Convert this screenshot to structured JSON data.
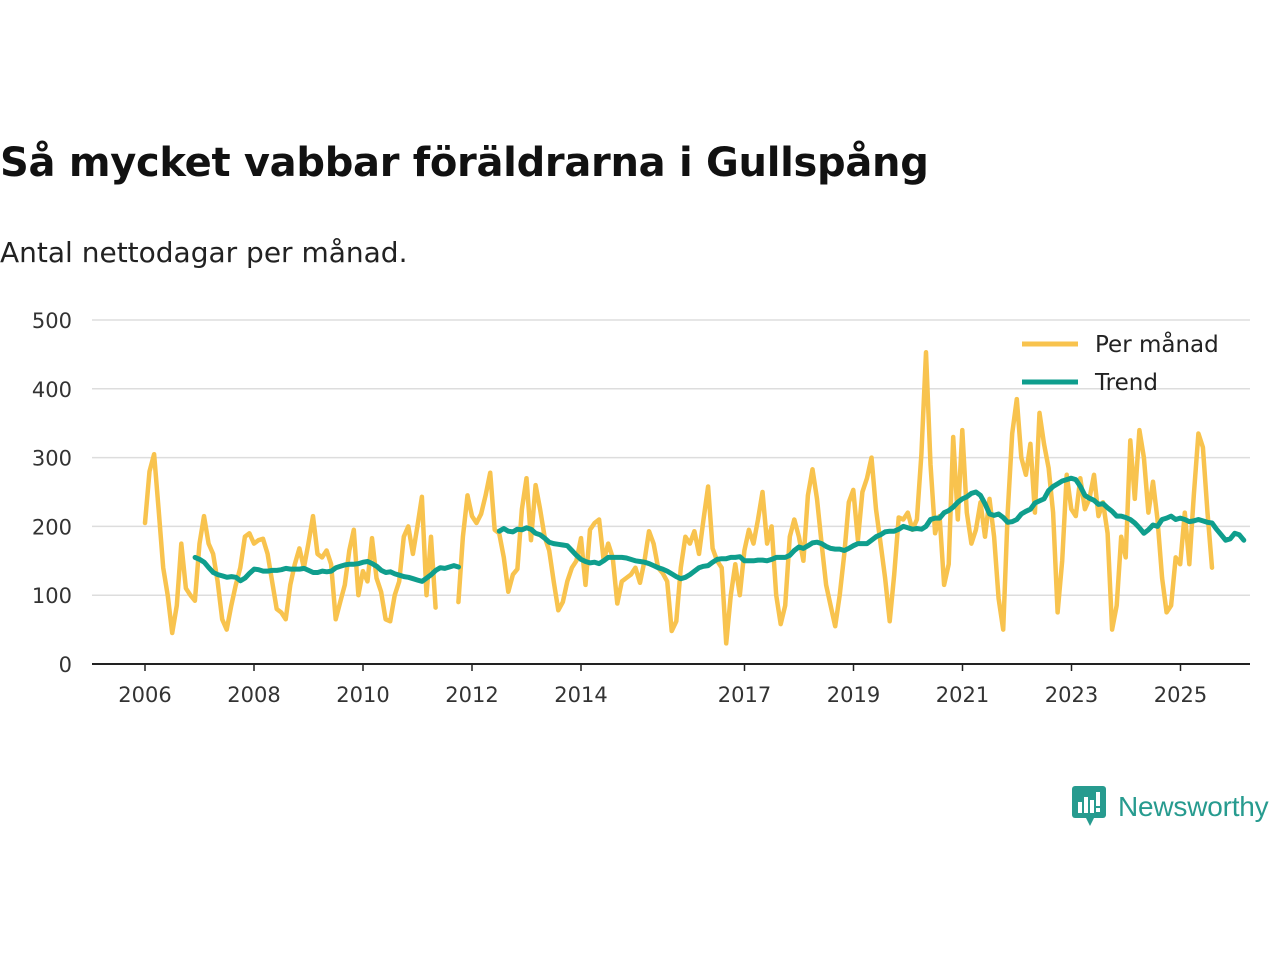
{
  "title": "Så mycket vabbar föräldrarna i Gullspång",
  "subtitle": "Antal nettodagar per månad.",
  "brand": {
    "name": "Newsworthy",
    "icon": "newsworthy-logo-icon",
    "color": "#279b8f"
  },
  "colors": {
    "monthly": "#f8c34e",
    "trend": "#0f9e8d",
    "grid": "#dddddd",
    "axis": "#222222"
  },
  "chart_data": {
    "type": "line",
    "title": "Så mycket vabbar föräldrarna i Gullspång",
    "subtitle": "Antal nettodagar per månad.",
    "xlabel": "",
    "ylabel": "",
    "ylim": [
      0,
      500
    ],
    "xlim": [
      2005.1,
      2025.8
    ],
    "yticks": [
      0,
      100,
      200,
      300,
      400,
      500
    ],
    "xticks": [
      2006,
      2008,
      2010,
      2012,
      2014,
      2017,
      2019,
      2021,
      2023,
      2025
    ],
    "xtick_labels": [
      "2006",
      "2008",
      "2010",
      "2012",
      "2014",
      "2017",
      "2019",
      "2021",
      "2023",
      "2025"
    ],
    "grid": true,
    "legend_position": "top-right",
    "series": [
      {
        "name": "Per månad",
        "color": "#f8c34e",
        "segments": [
          {
            "start": 2006.0,
            "step": 0.0833,
            "values": [
              205,
              280,
              305,
              225,
              140,
              100,
              45,
              85,
              175,
              110,
              100,
              92,
              175,
              215,
              175,
              160,
              120,
              65,
              50,
              85,
              115,
              140,
              185,
              190,
              175,
              180,
              182,
              160,
              120,
              80,
              75,
              65,
              115,
              145,
              168,
              140,
              175,
              215,
              160,
              155,
              165,
              145,
              65,
              90,
              115,
              165,
              195,
              100,
              135,
              120,
              183,
              125,
              105,
              65,
              62,
              100,
              120,
              185,
              200,
              160,
              200,
              243,
              100,
              185,
              82
            ]
          },
          {
            "start": 2011.75,
            "step": 0.0833,
            "values": [
              90,
              185,
              245,
              215,
              205,
              218,
              245,
              278,
              195,
              190,
              155,
              105,
              130,
              138,
              225,
              270,
              180,
              260,
              225,
              185,
              165,
              120,
              78,
              90,
              120,
              140,
              150,
              183,
              115,
              195,
              205,
              210,
              150,
              175,
              155,
              88,
              120,
              125,
              130,
              140,
              118,
              150,
              193,
              175,
              140,
              132,
              120,
              48,
              62,
              140,
              185,
              175,
              193,
              160,
              210,
              258,
              168,
              150,
              140,
              30,
              100,
              145,
              100,
              165,
              195,
              175,
              210,
              250,
              175,
              200,
              100,
              58,
              85,
              185,
              210,
              185,
              150,
              245,
              283,
              240,
              175,
              115,
              85,
              55,
              100,
              160,
              235,
              253,
              180,
              250,
              270,
              300,
              225,
              175,
              125,
              62,
              130,
              213,
              210,
              220,
              195,
              210,
              305,
              453,
              290,
              190,
              215,
              115,
              145,
              330,
              210,
              340,
              220,
              175,
              195,
              235,
              185,
              240,
              185,
              95,
              50,
              220,
              335,
              385,
              300,
              275,
              320,
              220,
              365,
              320,
              285,
              220,
              75,
              150,
              275,
              225,
              215,
              270,
              225,
              240,
              275,
              215,
              235,
              190,
              50,
              85,
              185,
              155,
              325,
              240,
              340,
              300,
              220,
              265,
              210,
              125,
              75,
              85,
              155,
              145,
              220,
              145,
              245,
              335,
              315,
              220,
              140
            ]
          }
        ]
      },
      {
        "name": "Trend",
        "color": "#0f9e8d",
        "segments": [
          {
            "start": 2006.92,
            "step": 0.0833,
            "values": [
              155,
              152,
              148,
              140,
              133,
              130,
              128,
              126,
              127,
              126,
              121,
              125,
              132,
              138,
              137,
              135,
              135,
              136,
              136,
              137,
              139,
              138,
              138,
              138,
              139,
              136,
              133,
              133,
              135,
              134,
              135,
              140,
              142,
              144,
              145,
              145,
              146,
              148,
              149,
              146,
              142,
              136,
              133,
              134,
              131,
              129,
              127,
              126,
              124,
              122,
              120,
              125,
              130,
              136,
              140,
              139,
              141,
              143,
              141
            ]
          },
          {
            "start": 2012.5,
            "step": 0.0833,
            "values": [
              193,
              197,
              193,
              192,
              196,
              195,
              198,
              196,
              190,
              188,
              183,
              177,
              175,
              174,
              173,
              172,
              165,
              158,
              152,
              149,
              147,
              148,
              146,
              150,
              155,
              155,
              155,
              155,
              154,
              152,
              150,
              149,
              148,
              146,
              143,
              140,
              138,
              135,
              131,
              127,
              124,
              126,
              130,
              135,
              140,
              142,
              143,
              148,
              152,
              153,
              153,
              155,
              155,
              156,
              150,
              150,
              150,
              151,
              151,
              150,
              152,
              155,
              155,
              155,
              158,
              165,
              170,
              168,
              172,
              176,
              177,
              175,
              171,
              168,
              167,
              167,
              165,
              168,
              172,
              175,
              175,
              175,
              180,
              185,
              188,
              192,
              193,
              193,
              196,
              200,
              198,
              196,
              197,
              196,
              200,
              210,
              212,
              212,
              220,
              223,
              228,
              235,
              240,
              243,
              248,
              250,
              245,
              233,
              218,
              216,
              218,
              213,
              206,
              207,
              210,
              218,
              222,
              225,
              234,
              237,
              240,
              252,
              258,
              262,
              266,
              268,
              270,
              268,
              258,
              245,
              241,
              238,
              232,
              233,
              227,
              222,
              215,
              215,
              213,
              210,
              205,
              198,
              190,
              195,
              202,
              200,
              210,
              212,
              215,
              210,
              212,
              210,
              207,
              208,
              210,
              208,
              206,
              205,
              196,
              188,
              180,
              182,
              190,
              188,
              180
            ]
          }
        ]
      }
    ]
  }
}
